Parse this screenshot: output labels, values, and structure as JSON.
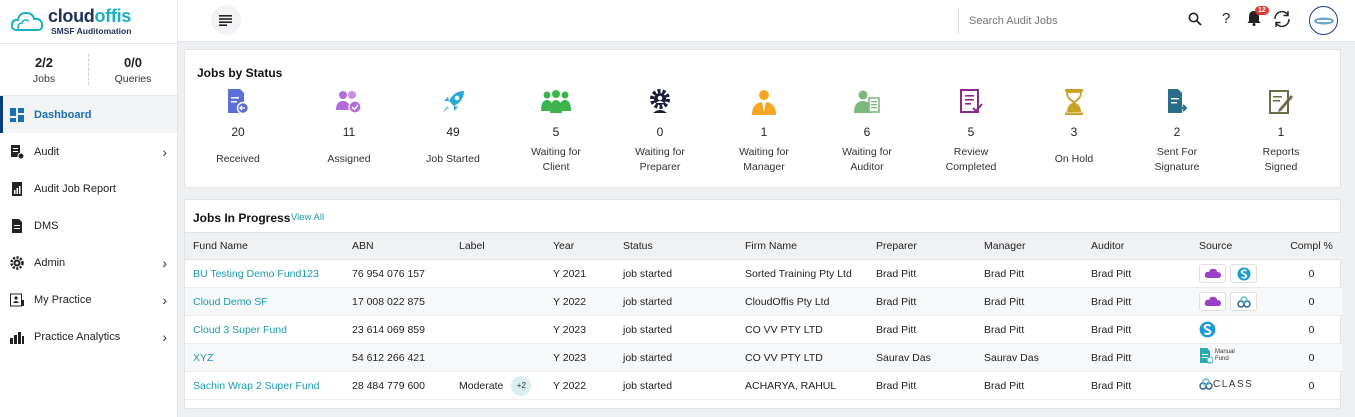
{
  "brand": {
    "name_part1": "cloud",
    "name_part2": "offis",
    "subtitle": "SMSF Auditomation"
  },
  "counts": {
    "jobs_value": "2/2",
    "jobs_label": "Jobs",
    "queries_value": "0/0",
    "queries_label": "Queries"
  },
  "sidebar": {
    "items": [
      {
        "label": "Dashboard",
        "icon": "dashboard-icon"
      },
      {
        "label": "Audit",
        "icon": "audit-icon"
      },
      {
        "label": "Audit Job Report",
        "icon": "report-icon"
      },
      {
        "label": "DMS",
        "icon": "document-icon"
      },
      {
        "label": "Admin",
        "icon": "gear-icon"
      },
      {
        "label": "My Practice",
        "icon": "practice-icon"
      },
      {
        "label": "Practice Analytics",
        "icon": "analytics-icon"
      }
    ]
  },
  "header": {
    "search_placeholder": "Search Audit Jobs",
    "notification_count": "12"
  },
  "status": {
    "title": "Jobs by Status",
    "items": [
      {
        "count": "20",
        "line1": "Received",
        "line2": "",
        "color": "#5b6fd6"
      },
      {
        "count": "11",
        "line1": "Assigned",
        "line2": "",
        "color": "#b36bd6"
      },
      {
        "count": "49",
        "line1": "Job Started",
        "line2": "",
        "color": "#2aa9d6"
      },
      {
        "count": "5",
        "line1": "Waiting for",
        "line2": "Client",
        "color": "#3cb44b"
      },
      {
        "count": "0",
        "line1": "Waiting for",
        "line2": "Preparer",
        "color": "#1a1a3a"
      },
      {
        "count": "1",
        "line1": "Waiting for",
        "line2": "Manager",
        "color": "#f5a623"
      },
      {
        "count": "6",
        "line1": "Waiting for",
        "line2": "Auditor",
        "color": "#7bb77b"
      },
      {
        "count": "5",
        "line1": "Review",
        "line2": "Completed",
        "color": "#8a2b8a"
      },
      {
        "count": "3",
        "line1": "On Hold",
        "line2": "",
        "color": "#c9a227"
      },
      {
        "count": "2",
        "line1": "Sent For",
        "line2": "Signature",
        "color": "#2a6f8a"
      },
      {
        "count": "1",
        "line1": "Reports",
        "line2": "Signed",
        "color": "#6b6b4a"
      }
    ]
  },
  "jobs": {
    "title": "Jobs In Progress",
    "view_all": "View All",
    "columns": [
      "Fund Name",
      "ABN",
      "Label",
      "Year",
      "Status",
      "Firm Name",
      "Preparer",
      "Manager",
      "Auditor",
      "Source",
      "Compl %"
    ],
    "rows": [
      {
        "fund": "BU Testing Demo Fund123",
        "abn": "76 954 076 157",
        "label": "",
        "badge": "",
        "year": "Y 2021",
        "status": "job started",
        "firm": "Sorted Training Pty Ltd",
        "preparer": "Brad Pitt",
        "manager": "Brad Pitt",
        "auditor": "Brad Pitt",
        "source": "cloud-and-s",
        "compl": "0"
      },
      {
        "fund": "Cloud Demo SF",
        "abn": "17 008 022 875",
        "label": "",
        "badge": "",
        "year": "Y 2022",
        "status": "job started",
        "firm": "CloudOffis Pty Ltd",
        "preparer": "Brad Pitt",
        "manager": "Brad Pitt",
        "auditor": "Brad Pitt",
        "source": "cloud-and-class",
        "compl": "0"
      },
      {
        "fund": "Cloud 3 Super Fund",
        "abn": "23 614 069 859",
        "label": "",
        "badge": "",
        "year": "Y 2023",
        "status": "job started",
        "firm": "CO VV PTY LTD",
        "preparer": "Brad Pitt",
        "manager": "Brad Pitt",
        "auditor": "Brad Pitt",
        "source": "s-logo",
        "compl": "0"
      },
      {
        "fund": "XYZ",
        "abn": "54 612 266 421",
        "label": "",
        "badge": "",
        "year": "Y 2023",
        "status": "job started",
        "firm": "CO VV PTY LTD",
        "preparer": "Saurav Das",
        "manager": "Saurav Das",
        "auditor": "Brad Pitt",
        "source": "manual",
        "compl": "0"
      },
      {
        "fund": "Sachin Wrap 2 Super Fund",
        "abn": "28 484 779 600",
        "label": "Moderate",
        "badge": "+2",
        "year": "Y 2022",
        "status": "job started",
        "firm": "ACHARYA, RAHUL",
        "preparer": "Brad Pitt",
        "manager": "Brad Pitt",
        "auditor": "Brad Pitt",
        "source": "class",
        "compl": "0"
      }
    ],
    "source_labels": {
      "manual_line1": "Manual",
      "manual_line2": "Fund",
      "class_text": "CLASS"
    }
  }
}
